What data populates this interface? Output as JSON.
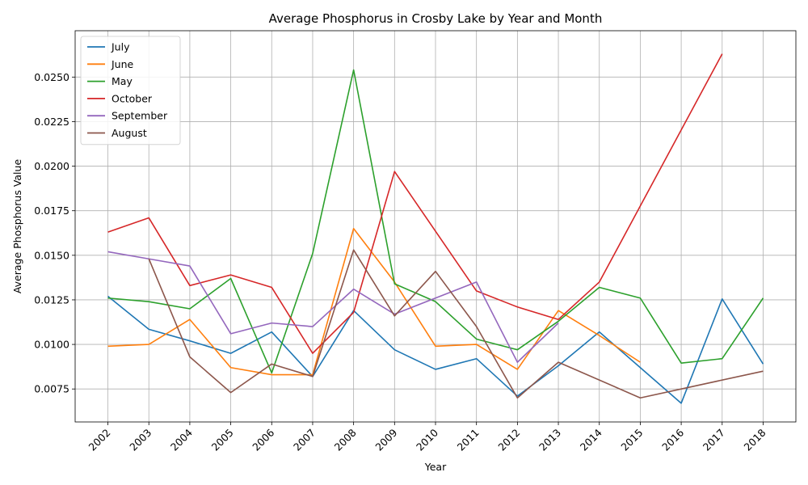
{
  "chart_data": {
    "type": "line",
    "title": "Average Phosphorus in Crosby Lake by Year and Month",
    "xlabel": "Year",
    "ylabel": "Average Phosphorus Value",
    "x": [
      2002,
      2003,
      2004,
      2005,
      2006,
      2007,
      2008,
      2009,
      2010,
      2011,
      2012,
      2013,
      2014,
      2015,
      2016,
      2017,
      2018
    ],
    "x_tick_labels": [
      "2002",
      "2003",
      "2004",
      "2005",
      "2006",
      "2007",
      "2008",
      "2009",
      "2010",
      "2011",
      "2012",
      "2013",
      "2014",
      "2015",
      "2016",
      "2017",
      "2018"
    ],
    "xlim": [
      2001.2,
      2018.8
    ],
    "ylim": [
      0.00565,
      0.0276
    ],
    "y_ticks": [
      0.0075,
      0.01,
      0.0125,
      0.015,
      0.0175,
      0.02,
      0.0225,
      0.025
    ],
    "y_tick_labels": [
      "0.0075",
      "0.0100",
      "0.0125",
      "0.0150",
      "0.0175",
      "0.0200",
      "0.0225",
      "0.0250"
    ],
    "grid": true,
    "legend_position": "top-left",
    "series": [
      {
        "name": "July",
        "color": "#1f77b4",
        "x": [
          2002,
          2003,
          2004,
          2005,
          2006,
          2007,
          2008,
          2009,
          2010,
          2011,
          2012,
          2013,
          2014,
          2015,
          2016,
          2017,
          2018
        ],
        "values": [
          0.0127,
          0.01085,
          0.0102,
          0.0095,
          0.0107,
          0.0082,
          0.0119,
          0.0097,
          0.0086,
          0.0092,
          0.0071,
          0.0088,
          0.0107,
          0.0087,
          0.0067,
          0.01255,
          0.0089
        ]
      },
      {
        "name": "June",
        "color": "#ff7f0e",
        "x": [
          2002,
          2003,
          2004,
          2005,
          2006,
          2007,
          2008,
          2009,
          2010,
          2011,
          2012,
          2013,
          2014,
          2015
        ],
        "values": [
          0.0099,
          0.01,
          0.0114,
          0.0087,
          0.0083,
          0.0083,
          0.0165,
          0.0135,
          0.0099,
          0.01,
          0.0086,
          0.0119,
          0.0105,
          0.009
        ]
      },
      {
        "name": "May",
        "color": "#2ca02c",
        "x": [
          2002,
          2003,
          2004,
          2005,
          2006,
          2007,
          2008,
          2009,
          2010,
          2011,
          2012,
          2013,
          2014,
          2015,
          2016,
          2017,
          2018
        ],
        "values": [
          0.0126,
          0.0124,
          0.012,
          0.0137,
          0.0084,
          0.0151,
          0.0254,
          0.0134,
          0.0124,
          0.0103,
          0.0097,
          0.0113,
          0.0132,
          0.0126,
          0.00895,
          0.0092,
          0.0126
        ]
      },
      {
        "name": "October",
        "color": "#d62728",
        "x": [
          2002,
          2003,
          2004,
          2005,
          2006,
          2007,
          2008,
          2009,
          2011,
          2012,
          2013,
          2014,
          2017
        ],
        "values": [
          0.0163,
          0.0171,
          0.0133,
          0.0139,
          0.0132,
          0.0095,
          0.0118,
          0.0197,
          0.013,
          0.0121,
          0.0114,
          0.0135,
          0.0263
        ]
      },
      {
        "name": "September",
        "color": "#9467bd",
        "x": [
          2002,
          2003,
          2004,
          2005,
          2006,
          2007,
          2008,
          2009,
          2011,
          2012,
          2013
        ],
        "values": [
          0.0152,
          0.0148,
          0.0144,
          0.0106,
          0.0112,
          0.011,
          0.0131,
          0.0117,
          0.0135,
          0.009,
          0.0112
        ]
      },
      {
        "name": "August",
        "color": "#8c564b",
        "x": [
          2002,
          2003,
          2004,
          2005,
          2006,
          2007,
          2008,
          2009,
          2010,
          2011,
          2012,
          2013,
          2015,
          2018
        ],
        "values": [
          null,
          0.0148,
          0.0093,
          0.0073,
          0.0089,
          0.0082,
          0.0153,
          0.0116,
          0.0141,
          0.011,
          0.007,
          0.009,
          0.007,
          0.0085
        ]
      }
    ]
  }
}
